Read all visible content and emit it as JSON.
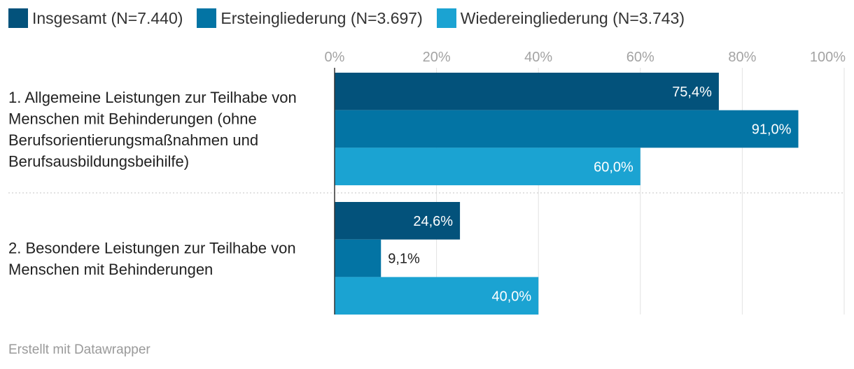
{
  "chart_data": {
    "type": "bar",
    "orientation": "horizontal",
    "categories": [
      [
        "1. Allgemeine Leistungen zur Teilhabe von",
        "Menschen mit Behinderungen (ohne",
        "Berufsorientierungsmaßnahmen und",
        "Berufsausbildungsbeihilfe)"
      ],
      [
        "2. Besondere Leistungen zur Teilhabe von",
        "Menschen mit Behinderungen"
      ]
    ],
    "series": [
      {
        "name": "Insgesamt (N=7.440)",
        "color": "#03527b",
        "values": [
          75.4,
          24.6
        ],
        "labels": [
          "75,4%",
          "24,6%"
        ]
      },
      {
        "name": "Ersteingliederung (N=3.697)",
        "color": "#0374a4",
        "values": [
          91.0,
          9.1
        ],
        "labels": [
          "91,0%",
          "9,1%"
        ]
      },
      {
        "name": "Wiedereingliederung (N=3.743)",
        "color": "#1ba3d2",
        "values": [
          60.0,
          40.0
        ],
        "labels": [
          "60,0%",
          "40,0%"
        ]
      }
    ],
    "xlim": [
      0,
      100
    ],
    "xticks": [
      0,
      20,
      40,
      60,
      80,
      100
    ],
    "xtick_labels": [
      "0%",
      "20%",
      "40%",
      "60%",
      "80%",
      "100%"
    ],
    "grid": true,
    "legend_position": "top-left"
  },
  "footer": {
    "credit": "Erstellt mit Datawrapper"
  }
}
